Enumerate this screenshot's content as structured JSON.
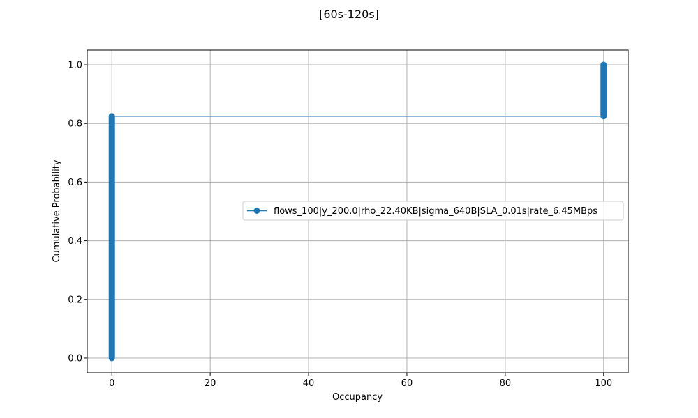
{
  "chart_data": {
    "type": "line",
    "title": "[60s-120s]",
    "xlabel": "Occupancy",
    "ylabel": "Cumulative Probability",
    "xlim": [
      -5,
      105
    ],
    "ylim": [
      -0.05,
      1.05
    ],
    "xticks": [
      0,
      20,
      40,
      60,
      80,
      100
    ],
    "yticks": [
      0.0,
      0.2,
      0.4,
      0.6,
      0.8,
      1.0
    ],
    "xtick_labels": [
      "0",
      "20",
      "40",
      "60",
      "80",
      "100"
    ],
    "ytick_labels": [
      "0.0",
      "0.2",
      "0.4",
      "0.6",
      "0.8",
      "1.0"
    ],
    "grid": true,
    "legend_position": "center-right",
    "series": [
      {
        "name": "flows_100|y_200.0|rho_22.40KB|sigma_640B|SLA_0.01s|rate_6.45MBps",
        "color": "#1f77b4",
        "marker": "circle",
        "segments": [
          {
            "x": 0,
            "y_from": 0.0,
            "y_to": 0.825
          },
          {
            "x": 100,
            "y_from": 0.825,
            "y_to": 1.0
          }
        ],
        "x": [
          0,
          0,
          100,
          100
        ],
        "y": [
          0.0,
          0.825,
          0.825,
          1.0
        ]
      }
    ]
  }
}
